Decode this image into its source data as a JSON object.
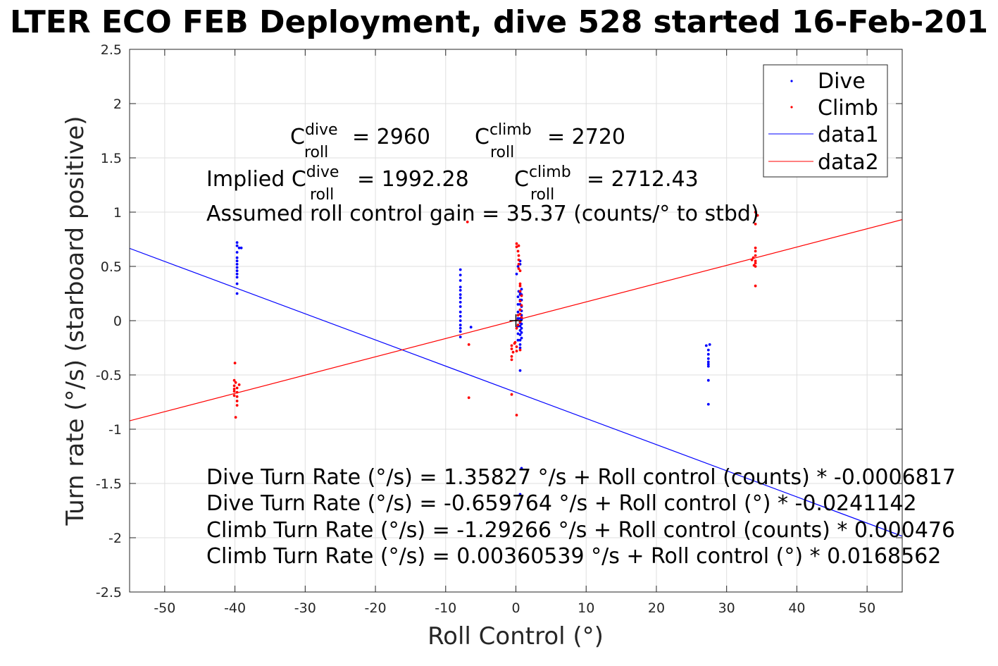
{
  "chart_data": {
    "type": "scatter",
    "title": "LTER ECO FEB Deployment, dive 528 started 16-Feb-201",
    "xlabel": "Roll Control (°)",
    "ylabel": "Turn rate (°/s) (starboard positive)",
    "xlim": [
      -55,
      55
    ],
    "ylim": [
      -2.5,
      2.5
    ],
    "xticks": [
      -50,
      -40,
      -30,
      -20,
      -10,
      0,
      10,
      20,
      30,
      40,
      50
    ],
    "yticks": [
      -2.5,
      -2,
      -1.5,
      -1,
      -0.5,
      0,
      0.5,
      1,
      1.5,
      2,
      2.5
    ],
    "grid": true,
    "legend_position": "top-right",
    "series": [
      {
        "name": "Dive",
        "kind": "points",
        "color": "#0000ff",
        "points": [
          [
            -39.7,
            0.72
          ],
          [
            -39.7,
            0.69
          ],
          [
            -39.4,
            0.67
          ],
          [
            -39.1,
            0.67
          ],
          [
            -39.7,
            0.63
          ],
          [
            -39.7,
            0.58
          ],
          [
            -39.7,
            0.55
          ],
          [
            -39.7,
            0.52
          ],
          [
            -39.7,
            0.49
          ],
          [
            -39.7,
            0.46
          ],
          [
            -39.7,
            0.43
          ],
          [
            -39.7,
            0.4
          ],
          [
            -39.7,
            0.34
          ],
          [
            -39.7,
            0.25
          ],
          [
            -7.9,
            0.47
          ],
          [
            -7.9,
            0.42
          ],
          [
            -7.9,
            0.37
          ],
          [
            -7.9,
            0.31
          ],
          [
            -7.9,
            0.28
          ],
          [
            -7.9,
            0.24
          ],
          [
            -7.9,
            0.21
          ],
          [
            -7.9,
            0.17
          ],
          [
            -7.9,
            0.13
          ],
          [
            -7.9,
            0.08
          ],
          [
            -7.9,
            0.04
          ],
          [
            -7.9,
            0.0
          ],
          [
            -7.9,
            -0.04
          ],
          [
            -7.9,
            -0.07
          ],
          [
            -7.9,
            -0.1
          ],
          [
            -7.9,
            -0.15
          ],
          [
            -6.4,
            -0.06
          ],
          [
            0.1,
            0.43
          ],
          [
            0.3,
            0.5
          ],
          [
            0.6,
            0.52
          ],
          [
            0.6,
            0.55
          ],
          [
            0.4,
            0.27
          ],
          [
            0.6,
            0.26
          ],
          [
            0.6,
            0.24
          ],
          [
            0.6,
            0.19
          ],
          [
            0.6,
            0.15
          ],
          [
            0.6,
            0.1
          ],
          [
            0.6,
            0.06
          ],
          [
            0.6,
            0.02
          ],
          [
            0.6,
            -0.02
          ],
          [
            0.6,
            -0.05
          ],
          [
            0.6,
            -0.09
          ],
          [
            0.6,
            -0.13
          ],
          [
            0.6,
            -0.18
          ],
          [
            0.6,
            -0.22
          ],
          [
            0.6,
            -0.25
          ],
          [
            0.3,
            -0.18
          ],
          [
            0.3,
            -0.12
          ],
          [
            0.3,
            -0.05
          ],
          [
            0.3,
            0.02
          ],
          [
            0.3,
            0.08
          ],
          [
            0.3,
            0.15
          ],
          [
            0.3,
            0.22
          ],
          [
            0.8,
            0.29
          ],
          [
            0.8,
            0.24
          ],
          [
            0.8,
            0.19
          ],
          [
            0.8,
            0.13
          ],
          [
            0.8,
            0.09
          ],
          [
            0.8,
            0.05
          ],
          [
            0.8,
            0.01
          ],
          [
            0.8,
            -0.03
          ],
          [
            0.8,
            -0.07
          ],
          [
            0.8,
            -0.11
          ],
          [
            0.8,
            -0.16
          ],
          [
            0.6,
            -0.46
          ],
          [
            0.8,
            -1.36
          ],
          [
            0.6,
            -1.6
          ],
          [
            27.1,
            -0.23
          ],
          [
            27.6,
            -0.22
          ],
          [
            27.4,
            -0.27
          ],
          [
            27.4,
            -0.31
          ],
          [
            27.4,
            -0.35
          ],
          [
            27.4,
            -0.38
          ],
          [
            27.4,
            -0.4
          ],
          [
            27.4,
            -0.42
          ],
          [
            27.4,
            -0.55
          ],
          [
            27.4,
            -0.77
          ]
        ]
      },
      {
        "name": "Climb",
        "kind": "points",
        "color": "#ff0000",
        "points": [
          [
            -40.0,
            -0.39
          ],
          [
            -40.1,
            -0.55
          ],
          [
            -39.9,
            -0.57
          ],
          [
            -39.4,
            -0.59
          ],
          [
            -40.1,
            -0.6
          ],
          [
            -39.7,
            -0.62
          ],
          [
            -40.1,
            -0.63
          ],
          [
            -40.1,
            -0.65
          ],
          [
            -39.7,
            -0.66
          ],
          [
            -40.1,
            -0.69
          ],
          [
            -39.7,
            -0.7
          ],
          [
            -39.7,
            -0.74
          ],
          [
            -39.7,
            -0.78
          ],
          [
            -39.9,
            -0.89
          ],
          [
            -6.9,
            0.91
          ],
          [
            -6.7,
            -0.22
          ],
          [
            -6.7,
            -0.71
          ],
          [
            0.1,
            0.71
          ],
          [
            0.1,
            0.68
          ],
          [
            0.4,
            0.69
          ],
          [
            0.3,
            0.64
          ],
          [
            0.4,
            0.6
          ],
          [
            0.4,
            0.56
          ],
          [
            0.4,
            0.52
          ],
          [
            0.4,
            0.48
          ],
          [
            0.6,
            0.46
          ],
          [
            0.6,
            0.34
          ],
          [
            0.6,
            0.32
          ],
          [
            0.6,
            0.27
          ],
          [
            0.8,
            0.23
          ],
          [
            0.6,
            0.18
          ],
          [
            0.8,
            0.14
          ],
          [
            0.6,
            0.1
          ],
          [
            0.6,
            0.06
          ],
          [
            0.8,
            0.03
          ],
          [
            0.6,
            -0.01
          ],
          [
            0.3,
            -0.04
          ],
          [
            0.1,
            -0.07
          ],
          [
            0.3,
            0.05
          ],
          [
            -0.1,
            -0.2
          ],
          [
            -0.6,
            -0.23
          ],
          [
            -0.6,
            -0.26
          ],
          [
            -0.4,
            -0.29
          ],
          [
            -0.6,
            -0.33
          ],
          [
            -0.6,
            -0.36
          ],
          [
            -0.2,
            -0.21
          ],
          [
            0.1,
            -0.24
          ],
          [
            0.1,
            -0.28
          ],
          [
            0.6,
            -0.27
          ],
          [
            -0.6,
            -0.68
          ],
          [
            0.1,
            -0.87
          ],
          [
            34.1,
            1.0
          ],
          [
            34.4,
            0.97
          ],
          [
            34.1,
            0.89
          ],
          [
            34.1,
            0.67
          ],
          [
            34.1,
            0.64
          ],
          [
            34.1,
            0.6
          ],
          [
            33.8,
            0.58
          ],
          [
            33.6,
            0.56
          ],
          [
            34.1,
            0.55
          ],
          [
            34.1,
            0.53
          ],
          [
            33.9,
            0.51
          ],
          [
            34.1,
            0.5
          ],
          [
            34.1,
            0.32
          ]
        ]
      },
      {
        "name": "data1",
        "kind": "line",
        "color": "#0000ff",
        "points": [
          [
            -55,
            0.666
          ],
          [
            55,
            -1.986
          ]
        ]
      },
      {
        "name": "data2",
        "kind": "line",
        "color": "#ff0000",
        "points": [
          [
            -55,
            -0.923
          ],
          [
            55,
            0.931
          ]
        ]
      }
    ],
    "marker": {
      "label": "+",
      "point": [
        0,
        0
      ],
      "color": "#000000"
    },
    "annotations": {
      "c_roll_dive": {
        "base": "C",
        "sup": "dive",
        "sub": "roll",
        "value": "= 2960"
      },
      "c_roll_climb": {
        "base": "C",
        "sup": "climb",
        "sub": "roll",
        "value": "= 2720"
      },
      "implied_dive": {
        "prefix": "Implied C",
        "sup": "dive",
        "sub": "roll",
        "value": "= 1992.28"
      },
      "implied_climb": {
        "base": "C",
        "sup": "climb",
        "sub": "roll",
        "value": "= 2712.43"
      },
      "gain": "Assumed roll control gain = 35.37 (counts/° to stbd)",
      "eq1": "Dive Turn Rate (°/s) = 1.35827 °/s + Roll control (counts) * -0.0006817",
      "eq2": "Dive Turn Rate (°/s) = -0.659764 °/s + Roll control (°) * -0.0241142",
      "eq3": "Climb Turn Rate (°/s) = -1.29266 °/s + Roll control (counts) * 0.000476",
      "eq4": "Climb Turn Rate (°/s) = 0.00360539 °/s + Roll control (°) * 0.0168562"
    }
  }
}
